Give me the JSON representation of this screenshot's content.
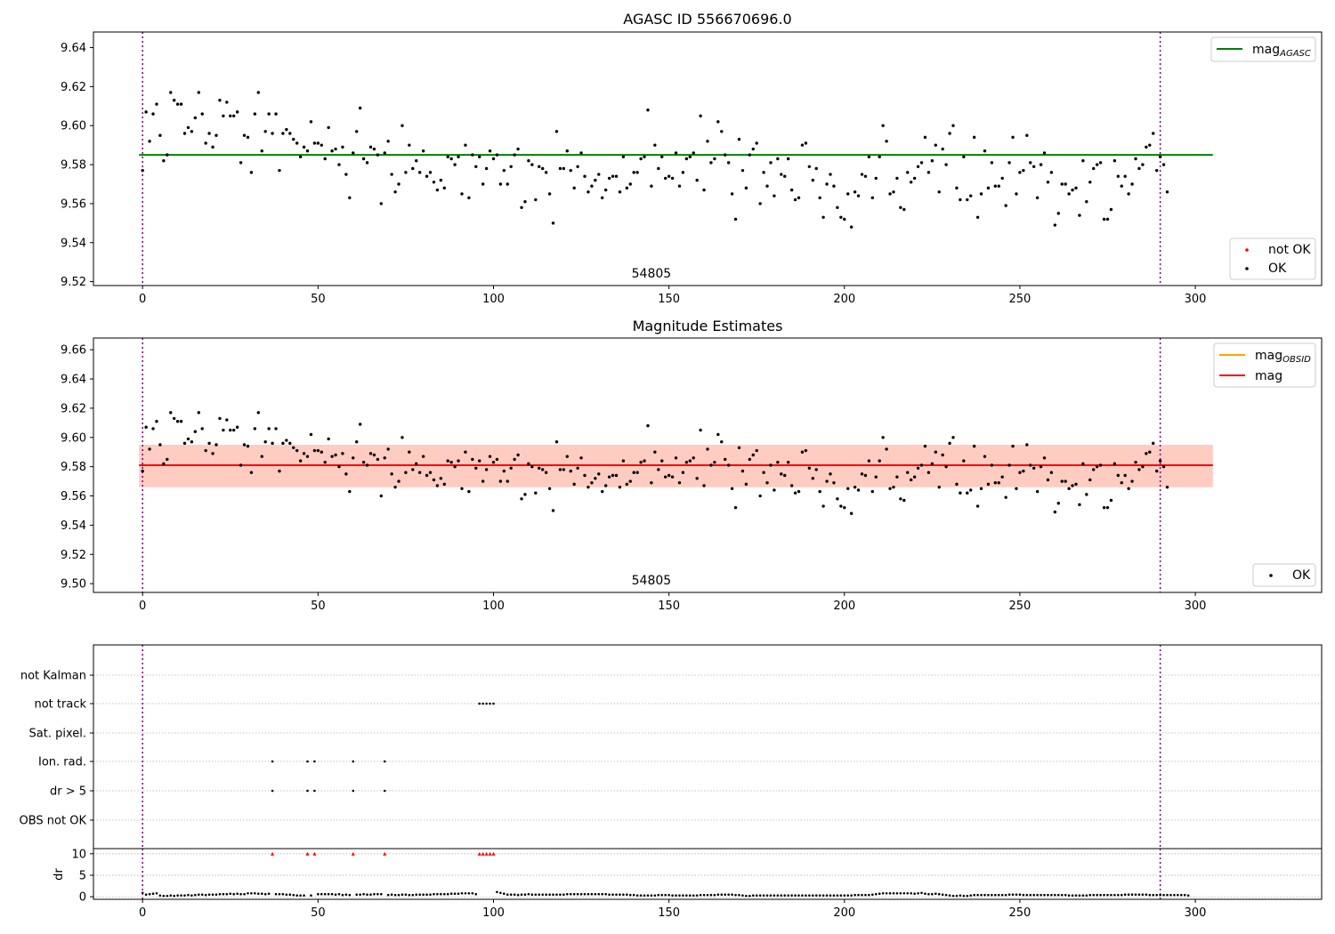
{
  "chart_data": [
    {
      "type": "scatter",
      "title": "AGASC ID 556670696.0",
      "xlim": [
        -14,
        336
      ],
      "ylim": [
        9.518,
        9.648
      ],
      "xticks": [
        0,
        50,
        100,
        150,
        200,
        250,
        300
      ],
      "yticks": [
        9.52,
        9.54,
        9.56,
        9.58,
        9.6,
        9.62,
        9.64
      ],
      "vlines": [
        0,
        290
      ],
      "annotation": {
        "text": "54805",
        "x": 145
      },
      "hline": {
        "name": "mag",
        "subscript": "AGASC",
        "y": 9.585,
        "x": [
          -1,
          305
        ],
        "color": "#008000"
      },
      "series_ok": {
        "name": "OK",
        "color": "#000000"
      },
      "series_not_ok": {
        "name": "not OK",
        "color": "#ff0000"
      },
      "legend_upper": "upper right",
      "legend_lower": "lower right"
    },
    {
      "type": "scatter",
      "title": "Magnitude Estimates",
      "xlim": [
        -14,
        336
      ],
      "ylim": [
        9.494,
        9.668
      ],
      "xticks": [
        0,
        50,
        100,
        150,
        200,
        250,
        300
      ],
      "yticks": [
        9.5,
        9.52,
        9.54,
        9.56,
        9.58,
        9.6,
        9.62,
        9.64,
        9.66
      ],
      "vlines": [
        0,
        290
      ],
      "annotation": {
        "text": "54805",
        "x": 145
      },
      "lines": [
        {
          "name": "mag",
          "subscript": "OBSID",
          "y": 9.581,
          "color": "#ffa500"
        },
        {
          "name": "mag",
          "subscript": "",
          "y": 9.581,
          "color": "#ff0000"
        }
      ],
      "bands": [
        {
          "y0": 9.566,
          "y1": 9.595,
          "color": "#ffc0cb",
          "opacity": 0.45
        },
        {
          "y0": 9.566,
          "y1": 9.595,
          "color": "#ffa07a",
          "opacity": 0.35
        }
      ],
      "band_x": [
        -1,
        305
      ],
      "series_ok": {
        "name": "OK",
        "color": "#000000"
      }
    },
    {
      "type": "scatter",
      "title": "",
      "xlim": [
        -14,
        336
      ],
      "xticks": [
        0,
        50,
        100,
        150,
        200,
        250,
        300
      ],
      "vlines": [
        0,
        290
      ],
      "categories": [
        "not Kalman",
        "not track",
        "Sat. pixel.",
        "Ion. rad.",
        "dr > 5",
        "OBS not OK"
      ],
      "flags": {
        "not track": [
          96,
          97,
          98,
          99,
          100
        ],
        "Ion. rad.": [
          37,
          47,
          49,
          60,
          69
        ],
        "dr > 5": [
          37,
          47,
          49,
          60,
          69
        ]
      }
    },
    {
      "type": "scatter",
      "title": "",
      "ylabel": "dr",
      "xlim": [
        -14,
        336
      ],
      "ylim": [
        -0.6,
        11.2
      ],
      "xticks": [
        0,
        50,
        100,
        150,
        200,
        250,
        300
      ],
      "yticks": [
        0,
        5,
        10
      ],
      "vlines": [
        0,
        290
      ],
      "clipped_x": [
        37,
        47,
        49,
        60,
        69,
        96,
        97,
        98,
        99,
        100
      ],
      "clipped_value": 10,
      "clipped_color": "#ff0000"
    }
  ],
  "series": {
    "mag": [
      9.577,
      9.607,
      9.592,
      9.606,
      9.611,
      9.595,
      9.582,
      9.585,
      9.617,
      9.613,
      9.611,
      9.611,
      9.596,
      9.599,
      9.597,
      9.604,
      9.617,
      9.606,
      9.591,
      9.596,
      9.589,
      9.595,
      9.613,
      9.605,
      9.612,
      9.605,
      9.605,
      9.607,
      9.581,
      9.595,
      9.594,
      9.576,
      9.606,
      9.617,
      9.587,
      9.597,
      9.606,
      9.596,
      9.606,
      9.577,
      9.596,
      9.598,
      9.596,
      9.593,
      9.591,
      9.584,
      9.589,
      9.587,
      9.602,
      9.591,
      9.591,
      9.59,
      9.583,
      9.599,
      9.587,
      9.588,
      9.58,
      9.589,
      9.575,
      9.563,
      9.586,
      9.597,
      9.609,
      9.583,
      9.581,
      9.589,
      9.588,
      9.585,
      9.56,
      9.586,
      9.592,
      9.575,
      9.566,
      9.57,
      9.6,
      9.576,
      9.59,
      9.578,
      9.582,
      9.576,
      9.587,
      9.574,
      9.576,
      9.571,
      9.567,
      9.572,
      9.568,
      9.584,
      9.583,
      9.58,
      9.584,
      9.565,
      9.59,
      9.563,
      9.585,
      9.579,
      9.584,
      9.57,
      9.578,
      9.587,
      9.583,
      9.585,
      9.57,
      9.577,
      9.57,
      9.579,
      9.585,
      9.588,
      9.558,
      9.561,
      9.582,
      9.58,
      9.562,
      9.579,
      9.578,
      9.576,
      9.565,
      9.55,
      9.597,
      9.578,
      9.578,
      9.587,
      9.577,
      9.568,
      9.579,
      9.586,
      9.574,
      9.566,
      9.569,
      9.572,
      9.575,
      9.563,
      9.567,
      9.573,
      9.574,
      9.574,
      9.566,
      9.584,
      9.568,
      9.57,
      9.576,
      9.576,
      9.583,
      9.584,
      9.608,
      9.569,
      9.59,
      9.578,
      9.584,
      9.573,
      9.574,
      9.573,
      9.586,
      9.569,
      9.576,
      9.583,
      9.584,
      9.586,
      9.572,
      9.605,
      9.567,
      9.592,
      9.581,
      9.583,
      9.602,
      9.597,
      9.585,
      9.581,
      9.565,
      9.552,
      9.593,
      9.577,
      9.568,
      9.585,
      9.588,
      9.591,
      9.56,
      9.576,
      9.569,
      9.581,
      9.564,
      9.583,
      9.575,
      9.574,
      9.583,
      9.567,
      9.562,
      9.563,
      9.59,
      9.591,
      9.579,
      9.572,
      9.578,
      9.563,
      9.553,
      9.57,
      9.575,
      9.569,
      9.558,
      9.553,
      9.552,
      9.565,
      9.548,
      9.566,
      9.564,
      9.575,
      9.574,
      9.584,
      9.563,
      9.573,
      9.584,
      9.6,
      9.592,
      9.565,
      9.566,
      9.573,
      9.558,
      9.557,
      9.576,
      9.571,
      9.573,
      9.579,
      9.581,
      9.594,
      9.576,
      9.582,
      9.59,
      9.566,
      9.588,
      9.58,
      9.596,
      9.6,
      9.568,
      9.562,
      9.584,
      9.562,
      9.564,
      9.594,
      9.553,
      9.565,
      9.587,
      9.568,
      9.581,
      9.569,
      9.569,
      9.573,
      9.559,
      9.581,
      9.594,
      9.565,
      9.576,
      9.577,
      9.595,
      9.581,
      9.579,
      9.563,
      9.58,
      9.586,
      9.571,
      9.576,
      9.549,
      9.555,
      9.57,
      9.57,
      9.565,
      9.567,
      9.568,
      9.554,
      9.582,
      9.561,
      9.571,
      9.578,
      9.58,
      9.581,
      9.552,
      9.552,
      9.557,
      9.582,
      9.574,
      9.569,
      9.574,
      9.565,
      9.57,
      9.583,
      9.578,
      9.58,
      9.589,
      9.59,
      9.596,
      9.577,
      9.584,
      9.58,
      9.566
    ],
    "dr": [
      0.9,
      0.5,
      0.6,
      0.7,
      0.8,
      0.3,
      0.2,
      0.2,
      0.3,
      0.2,
      0.3,
      0.3,
      0.3,
      0.4,
      0.3,
      0.4,
      0.5,
      0.5,
      0.4,
      0.5,
      0.5,
      0.5,
      0.6,
      0.6,
      0.6,
      0.7,
      0.6,
      0.7,
      0.6,
      0.6,
      0.8,
      0.8,
      0.8,
      0.7,
      0.7,
      0.6,
      0.7,
      0.6,
      0.6,
      0.6,
      0.6,
      0.5,
      0.5,
      0.4,
      0.3,
      0.3,
      0.3,
      0.6,
      0.3,
      0.6,
      0.6,
      0.6,
      0.6,
      0.6,
      0.6,
      0.5,
      0.6,
      0.4,
      0.5,
      0.4,
      0.6,
      0.5,
      0.5,
      0.6,
      0.5,
      0.5,
      0.6,
      0.6,
      0.6,
      0.3,
      0.4,
      0.5,
      0.4,
      0.4,
      0.5,
      0.5,
      0.4,
      0.4,
      0.5,
      0.5,
      0.5,
      0.5,
      0.5,
      0.6,
      0.6,
      0.6,
      0.6,
      0.6,
      0.7,
      0.7,
      0.7,
      0.8,
      0.8,
      0.8,
      0.8,
      0.6,
      0.6,
      0.6,
      0.6,
      0.6,
      0.6,
      1.1,
      0.9,
      0.7,
      0.5,
      0.5,
      0.5,
      0.4,
      0.5,
      0.5,
      0.6,
      0.5,
      0.5,
      0.5,
      0.5,
      0.5,
      0.5,
      0.5,
      0.5,
      0.5,
      0.5,
      0.6,
      0.6,
      0.6,
      0.6,
      0.6,
      0.6,
      0.6,
      0.6,
      0.6,
      0.6,
      0.6,
      0.6,
      0.5,
      0.5,
      0.5,
      0.5,
      0.5,
      0.5,
      0.4,
      0.4,
      0.3,
      0.3,
      0.3,
      0.3,
      0.3,
      0.3,
      0.4,
      0.4,
      0.4,
      0.4,
      0.3,
      0.3,
      0.3,
      0.3,
      0.3,
      0.3,
      0.3,
      0.3,
      0.4,
      0.4,
      0.4,
      0.4,
      0.4,
      0.5,
      0.5,
      0.5,
      0.5,
      0.5,
      0.4,
      0.4,
      0.3,
      0.2,
      0.2,
      0.3,
      0.3,
      0.3,
      0.3,
      0.3,
      0.3,
      0.3,
      0.3,
      0.3,
      0.3,
      0.3,
      0.3,
      0.3,
      0.3,
      0.3,
      0.3,
      0.3,
      0.3,
      0.3,
      0.3,
      0.3,
      0.3,
      0.3,
      0.3,
      0.3,
      0.3,
      0.3,
      0.3,
      0.3,
      0.4,
      0.4,
      0.4,
      0.4,
      0.4,
      0.5,
      0.6,
      0.7,
      0.8,
      0.8,
      0.8,
      0.8,
      0.8,
      0.8,
      0.8,
      0.8,
      0.8,
      0.7,
      0.8,
      0.9,
      0.7,
      0.6,
      0.6,
      0.7,
      0.6,
      0.5,
      0.4,
      0.3,
      0.2,
      0.2,
      0.3,
      0.2,
      0.2,
      0.3,
      0.4,
      0.4,
      0.4,
      0.4,
      0.4,
      0.4,
      0.4,
      0.4,
      0.4,
      0.4,
      0.5,
      0.5,
      0.5,
      0.5,
      0.4,
      0.4,
      0.4,
      0.4,
      0.4,
      0.4,
      0.4,
      0.4,
      0.4,
      0.4,
      0.4,
      0.4,
      0.4,
      0.3,
      0.3,
      0.3,
      0.3,
      0.3,
      0.3,
      0.4,
      0.4,
      0.4,
      0.4,
      0.4,
      0.4,
      0.4,
      0.4,
      0.4,
      0.4,
      0.5,
      0.5,
      0.5,
      0.5,
      0.5,
      0.5,
      0.5,
      0.4,
      0.4,
      0.4,
      0.4,
      0.4,
      0.4,
      0.4,
      0.4,
      0.4,
      0.4,
      0.4,
      0.3
    ]
  }
}
